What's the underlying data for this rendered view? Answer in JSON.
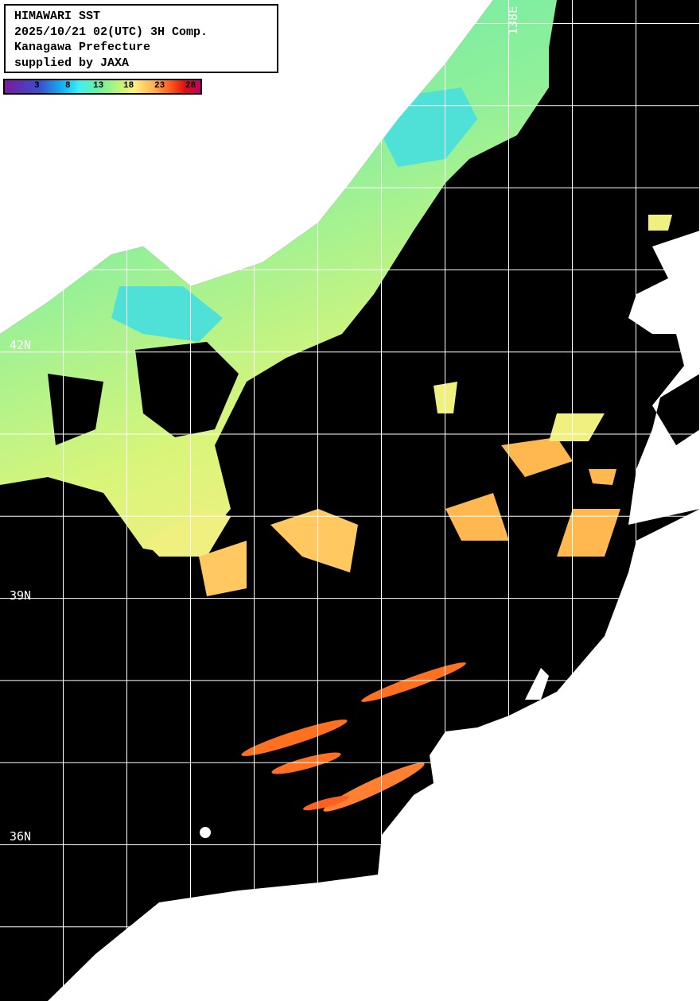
{
  "title": {
    "lines": [
      "HIMAWARI SST",
      "2025/10/21 02(UTC) 3H Comp.",
      "Kanagawa Prefecture",
      "supplied by JAXA"
    ]
  },
  "colorbar": {
    "labels": [
      "3",
      "8",
      "13",
      "18",
      "23",
      "28"
    ],
    "colors": [
      "#7a1a9e",
      "#10b8f5",
      "#6ff0a0",
      "#fff080",
      "#ffb050",
      "#e01010",
      "#c0006a"
    ]
  },
  "grid": {
    "lat_labels": [
      "42N",
      "39N",
      "36N"
    ],
    "lon_labels": [
      "138E"
    ]
  },
  "colors": {
    "land": "#ffffff",
    "no_data": "#000000",
    "grid": "#ffffff"
  }
}
